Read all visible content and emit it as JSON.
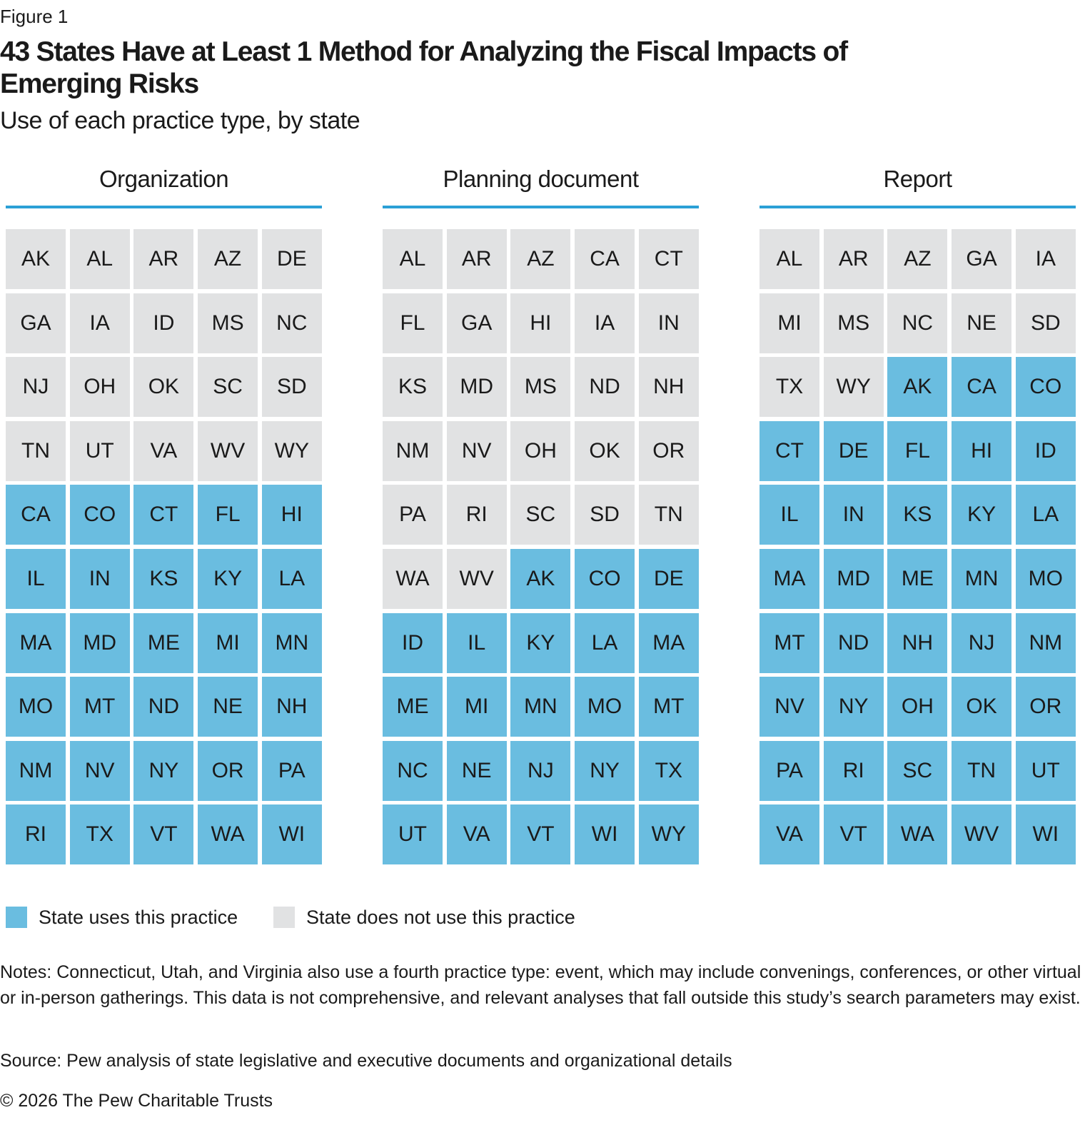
{
  "header": {
    "figure": "Figure 1",
    "title": "43 States Have at Least 1 Method for Analyzing the Fiscal Impacts of Emerging Risks",
    "subtitle": "Use of each practice type, by state"
  },
  "legend": [
    {
      "label": "State uses this practice",
      "color": "#6abde0"
    },
    {
      "label": "State does not use this practice",
      "color": "#e1e2e3"
    }
  ],
  "panels": [
    {
      "title": "Organization",
      "not_using": [
        "AK",
        "AL",
        "AR",
        "AZ",
        "DE",
        "GA",
        "IA",
        "ID",
        "MS",
        "NC",
        "NJ",
        "OH",
        "OK",
        "SC",
        "SD",
        "TN",
        "UT",
        "VA",
        "WV",
        "WY"
      ],
      "using": [
        "CA",
        "CO",
        "CT",
        "FL",
        "HI",
        "IL",
        "IN",
        "KS",
        "KY",
        "LA",
        "MA",
        "MD",
        "ME",
        "MI",
        "MN",
        "MO",
        "MT",
        "ND",
        "NE",
        "NH",
        "NM",
        "NV",
        "NY",
        "OR",
        "PA",
        "RI",
        "TX",
        "VT",
        "WA",
        "WI"
      ]
    },
    {
      "title": "Planning document",
      "not_using": [
        "AL",
        "AR",
        "AZ",
        "CA",
        "CT",
        "FL",
        "GA",
        "HI",
        "IA",
        "IN",
        "KS",
        "MD",
        "MS",
        "ND",
        "NH",
        "NM",
        "NV",
        "OH",
        "OK",
        "OR",
        "PA",
        "RI",
        "SC",
        "SD",
        "TN",
        "WA",
        "WV"
      ],
      "using": [
        "AK",
        "CO",
        "DE",
        "ID",
        "IL",
        "KY",
        "LA",
        "MA",
        "ME",
        "MI",
        "MN",
        "MO",
        "MT",
        "NC",
        "NE",
        "NJ",
        "NY",
        "TX",
        "UT",
        "VA",
        "VT",
        "WI",
        "WY"
      ]
    },
    {
      "title": "Report",
      "not_using": [
        "AL",
        "AR",
        "AZ",
        "GA",
        "IA",
        "MI",
        "MS",
        "NC",
        "NE",
        "SD",
        "TX",
        "WY"
      ],
      "using": [
        "AK",
        "CA",
        "CO",
        "CT",
        "DE",
        "FL",
        "HI",
        "ID",
        "IL",
        "IN",
        "KS",
        "KY",
        "LA",
        "MA",
        "MD",
        "ME",
        "MN",
        "MO",
        "MT",
        "ND",
        "NH",
        "NJ",
        "NM",
        "NV",
        "NY",
        "OH",
        "OK",
        "OR",
        "PA",
        "RI",
        "SC",
        "TN",
        "UT",
        "VA",
        "VT",
        "WA",
        "WV",
        "WI"
      ]
    }
  ],
  "notes": "Notes: Connecticut, Utah, and Virginia also use a fourth practice type: event, which may include convenings, conferences, or other virtual or in-person gatherings. This data is not comprehensive, and relevant analyses that fall outside this study’s search parameters may exist.",
  "source": "Source: Pew analysis of state legislative and executive documents and organizational details",
  "copyright": "© 2026 The Pew Charitable Trusts"
}
